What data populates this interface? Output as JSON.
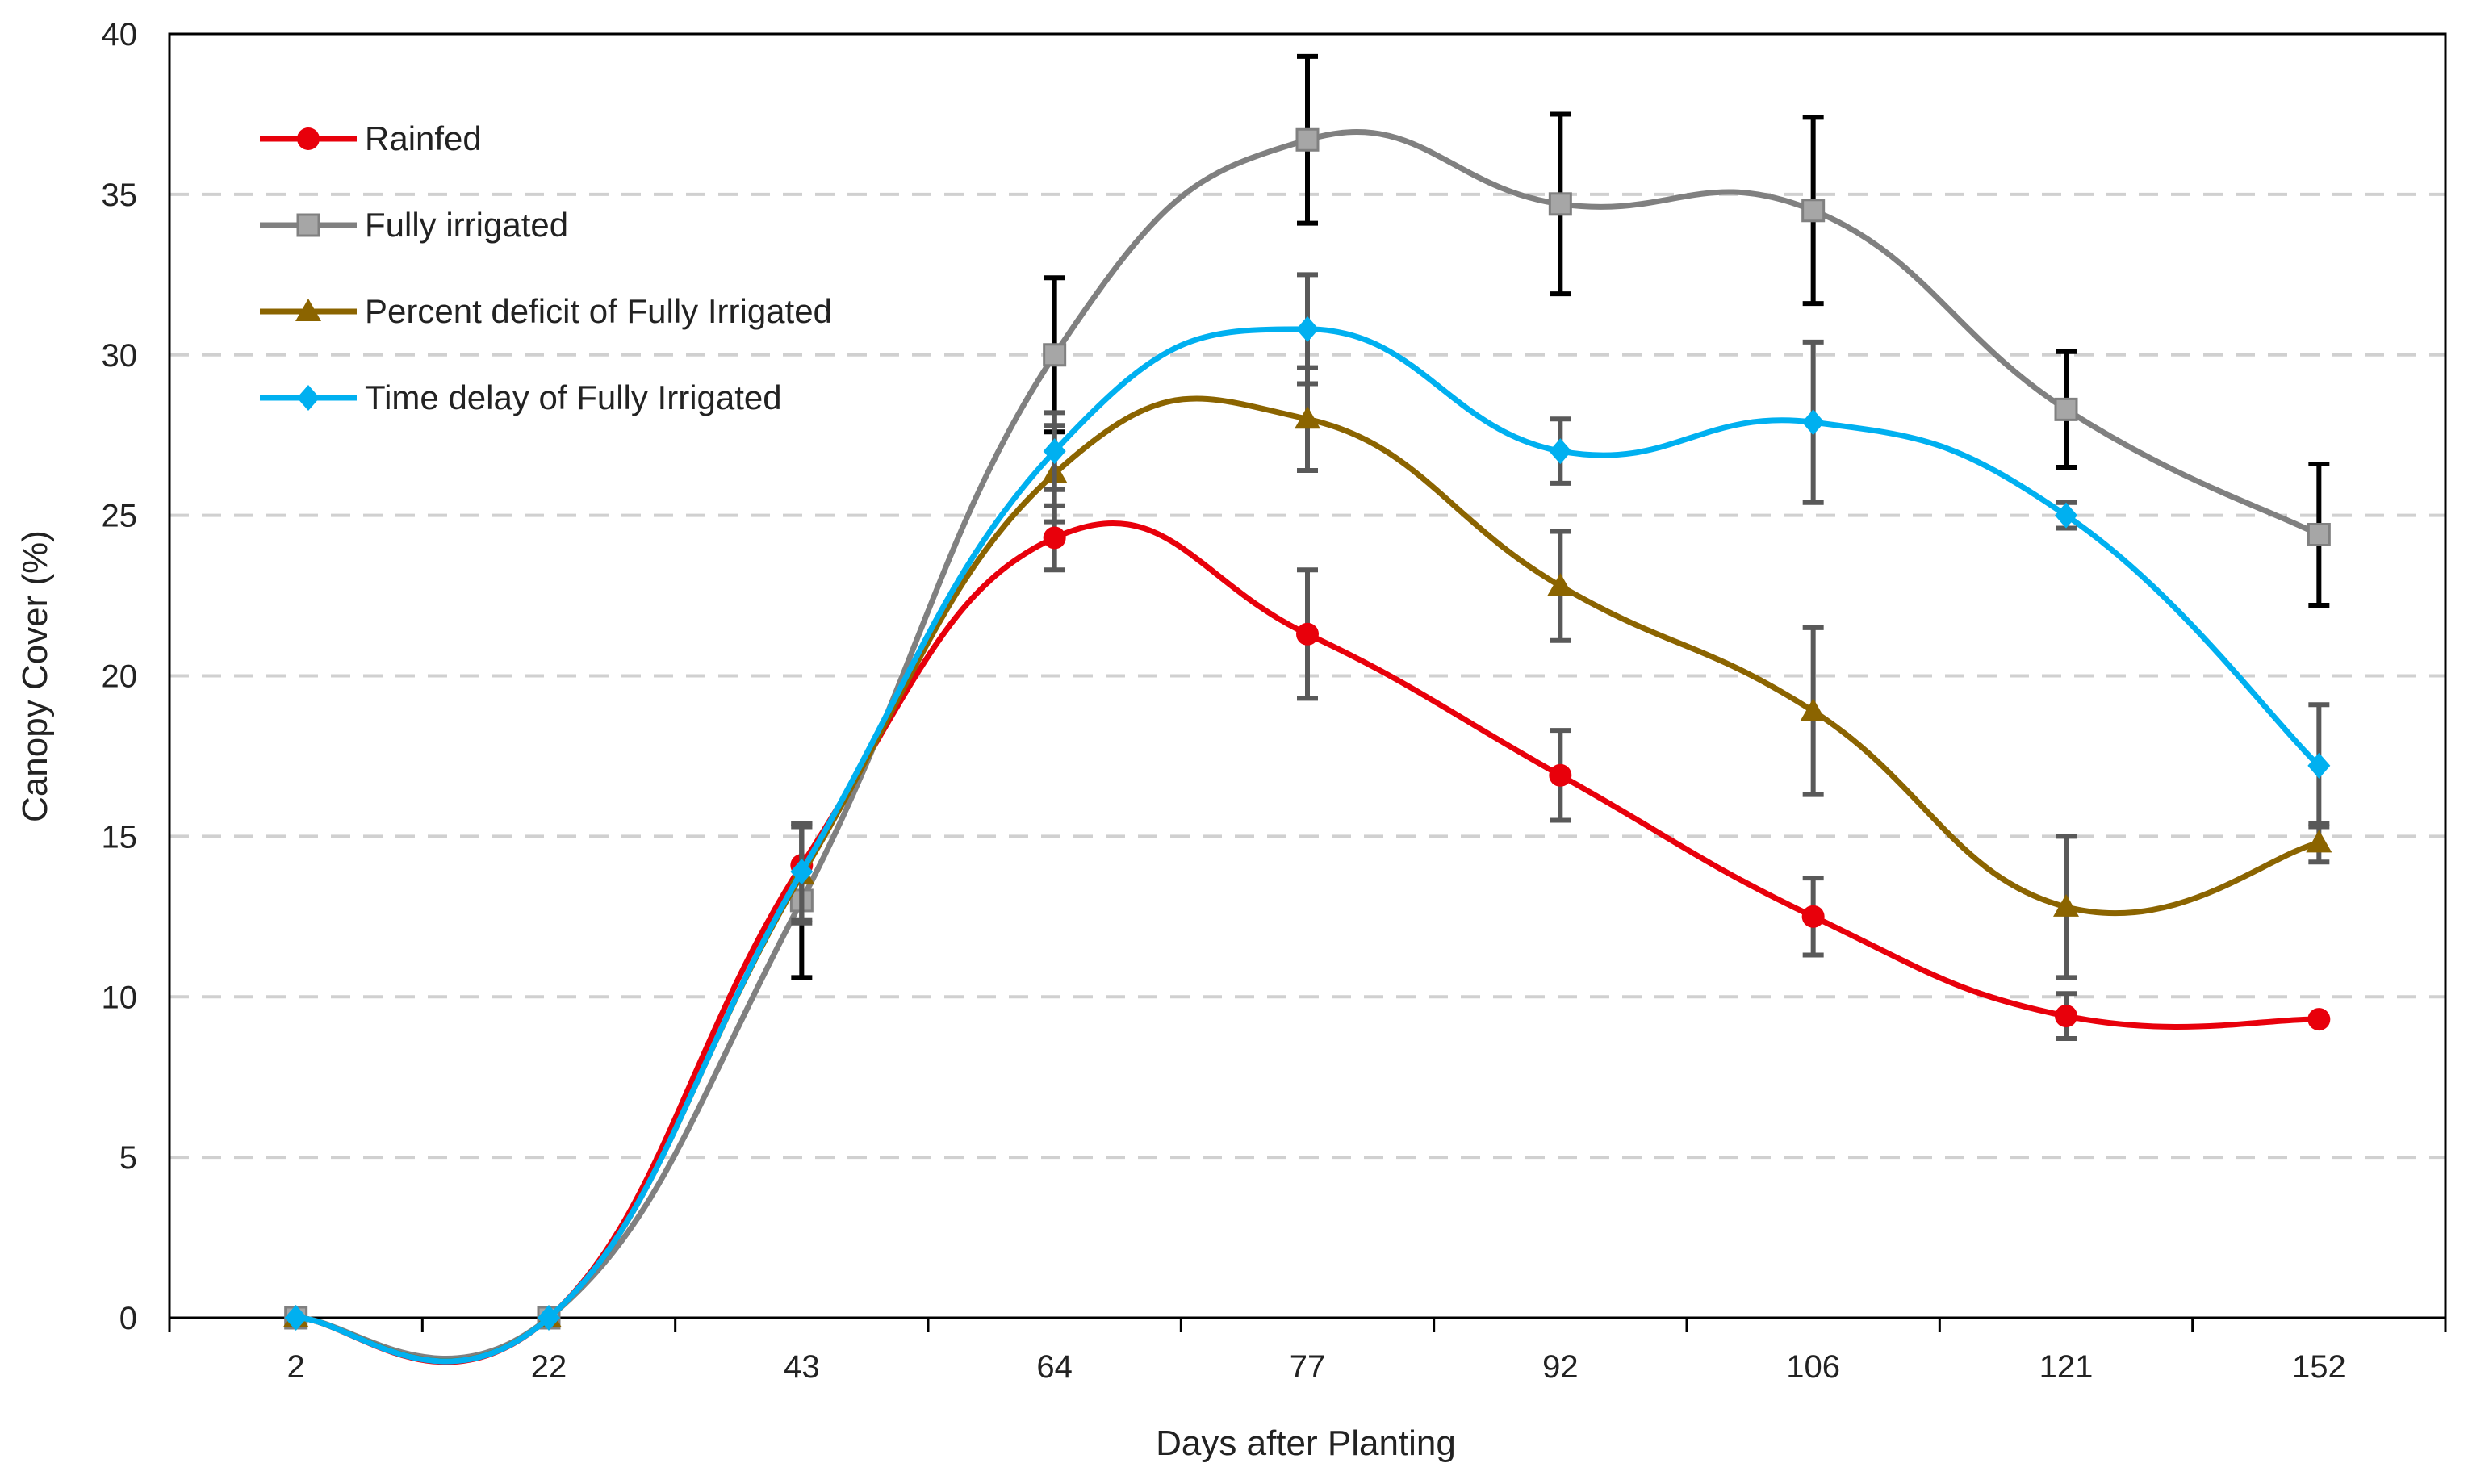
{
  "chart_data": {
    "type": "line",
    "title": "",
    "xlabel": "Days after Planting",
    "ylabel": "Canopy Cover (%)",
    "categories": [
      "2",
      "22",
      "43",
      "64",
      "77",
      "92",
      "106",
      "121",
      "152"
    ],
    "ylim": [
      0,
      40
    ],
    "yticks": [
      0,
      5,
      10,
      15,
      20,
      25,
      30,
      35,
      40
    ],
    "grid": "horizontal dashed",
    "legend_position": "top-left",
    "series": [
      {
        "name": "Rainfed",
        "color": "#e8000b",
        "marker": "circle",
        "values": [
          0,
          0,
          14.1,
          24.3,
          21.3,
          16.9,
          12.5,
          9.4,
          9.3
        ],
        "errors": [
          0,
          0,
          1.2,
          1.0,
          2.0,
          1.4,
          1.2,
          0.7,
          0
        ]
      },
      {
        "name": "Fully irrigated",
        "color": "#808080",
        "marker": "square",
        "values": [
          0,
          0,
          13.0,
          30.0,
          36.7,
          34.7,
          34.5,
          28.3,
          24.4
        ],
        "errors": [
          0,
          0,
          2.4,
          2.4,
          2.6,
          2.8,
          2.9,
          1.8,
          2.2
        ]
      },
      {
        "name": "Percent deficit of Fully Irrigated",
        "color": "#8b6400",
        "marker": "triangle",
        "values": [
          0,
          0,
          13.8,
          26.3,
          28.0,
          22.8,
          18.9,
          12.8,
          14.8
        ],
        "errors": [
          0,
          0,
          1.5,
          1.5,
          1.6,
          1.7,
          2.6,
          2.2,
          0.6
        ]
      },
      {
        "name": "Time delay of Fully Irrigated",
        "color": "#00b0f0",
        "marker": "diamond",
        "values": [
          0,
          0,
          13.9,
          27.0,
          30.8,
          27.0,
          27.9,
          25.0,
          17.2
        ],
        "errors": [
          0,
          0,
          1.5,
          1.2,
          1.7,
          1.0,
          2.5,
          0.4,
          1.9
        ]
      }
    ]
  }
}
